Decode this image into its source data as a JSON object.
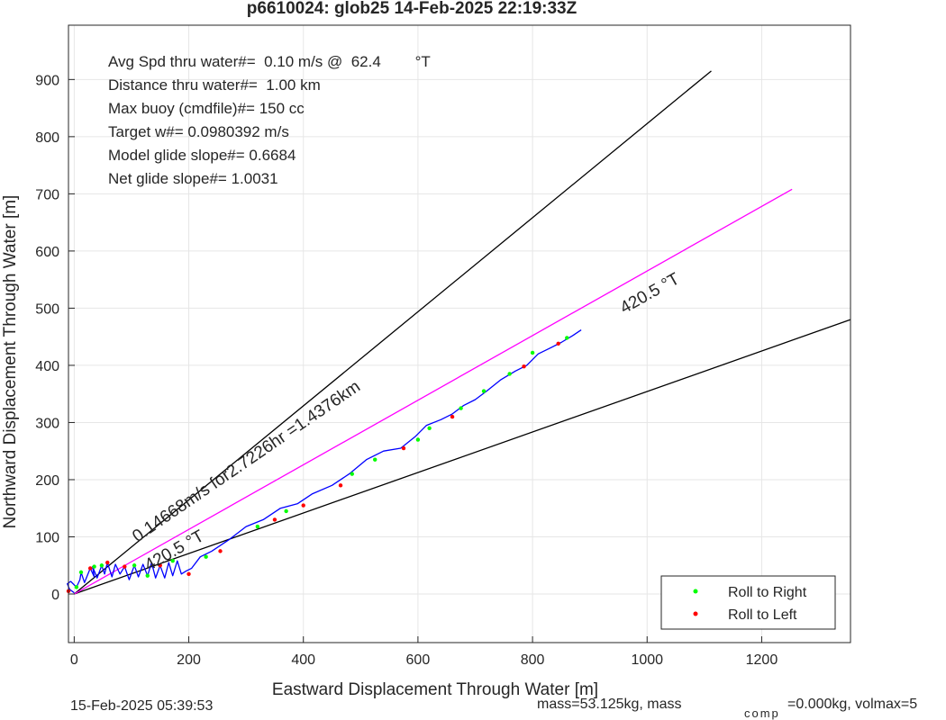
{
  "figure": {
    "footer_left": "15-Feb-2025 05:39:53",
    "footer_right_main": "mass=53.125kg, mass",
    "footer_right_sub": "comp",
    "footer_right_tail": "=0.000kg, volmax=5"
  },
  "chart_data": {
    "type": "line",
    "title": "p6610024: glob25 14-Feb-2025 22:19:33Z",
    "xlabel": "Eastward Displacement Through Water [m]",
    "ylabel": "Northward Displacement Through Water [m]",
    "xlim": [
      -10,
      1355
    ],
    "ylim": [
      -85,
      995
    ],
    "xticks": [
      0,
      200,
      400,
      600,
      800,
      1000,
      1200
    ],
    "yticks": [
      0,
      100,
      200,
      300,
      400,
      500,
      600,
      700,
      800,
      900
    ],
    "grid": true,
    "legend_position": "bottom-right",
    "legend": [
      {
        "label": "Roll to Right",
        "color": "#00ff00"
      },
      {
        "label": "Roll to Left",
        "color": "#ff0000"
      }
    ],
    "stats_lines": [
      "Avg Spd thru water#=  0.10 m/s @  62.4        °T",
      "Distance thru water#=  1.00 km",
      "Max buoy (cmdfile)#= 150 cc",
      "Target w#= 0.0980392 m/s",
      "Model glide slope#= 0.6684",
      "Net glide slope#= 1.0031"
    ],
    "annotations": [
      {
        "text": "0.14668m/s for2.7226hr =1.4376km",
        "x": 110,
        "y": 90
      },
      {
        "text": "420.5 °T",
        "x": 130,
        "y": 40
      },
      {
        "text": "420.5 °T",
        "x": 960,
        "y": 490
      }
    ],
    "reference_lines": [
      {
        "name": "upper bound",
        "color": "#000000",
        "x": [
          0,
          1112
        ],
        "y": [
          0,
          915
        ]
      },
      {
        "name": "lower bound",
        "color": "#000000",
        "x": [
          0,
          1355
        ],
        "y": [
          0,
          480
        ]
      },
      {
        "name": "intended course",
        "color": "#ff00ff",
        "x": [
          0,
          1253
        ],
        "y": [
          0,
          708
        ]
      }
    ],
    "series": [
      {
        "color": "#0000ff",
        "x": [
          0,
          -8,
          -12,
          -6,
          4,
          10,
          12,
          18,
          28,
          35,
          32,
          40,
          48,
          53,
          58,
          66,
          72,
          80,
          88,
          96,
          105,
          112,
          120,
          128,
          135,
          142,
          150,
          158,
          165,
          172,
          180,
          187,
          195,
          205,
          220,
          240,
          270,
          300,
          330,
          360,
          390,
          415,
          450,
          480,
          510,
          540,
          570,
          595,
          615,
          640,
          660,
          680,
          700,
          720,
          745,
          770,
          790,
          810,
          830,
          850,
          870,
          885
        ],
        "y": [
          2,
          8,
          18,
          22,
          12,
          25,
          38,
          20,
          45,
          30,
          48,
          28,
          50,
          35,
          55,
          30,
          52,
          35,
          48,
          25,
          50,
          30,
          52,
          32,
          55,
          28,
          50,
          28,
          55,
          32,
          58,
          35,
          40,
          45,
          65,
          75,
          95,
          118,
          130,
          150,
          158,
          175,
          190,
          210,
          235,
          250,
          255,
          275,
          295,
          305,
          315,
          330,
          340,
          355,
          375,
          390,
          400,
          420,
          430,
          440,
          452,
          462
        ]
      }
    ],
    "roll_right_points": {
      "x": [
        4,
        12,
        35,
        48,
        105,
        128,
        172,
        230,
        320,
        370,
        485,
        525,
        600,
        620,
        675,
        715,
        760,
        800,
        860
      ],
      "y": [
        12,
        38,
        48,
        50,
        50,
        32,
        58,
        65,
        118,
        145,
        210,
        235,
        270,
        290,
        325,
        355,
        385,
        422,
        448
      ]
    },
    "roll_left_points": {
      "x": [
        -10,
        28,
        58,
        88,
        150,
        200,
        255,
        350,
        400,
        465,
        575,
        660,
        785,
        845
      ],
      "y": [
        5,
        45,
        55,
        48,
        50,
        35,
        75,
        130,
        155,
        190,
        255,
        310,
        398,
        438
      ]
    }
  }
}
